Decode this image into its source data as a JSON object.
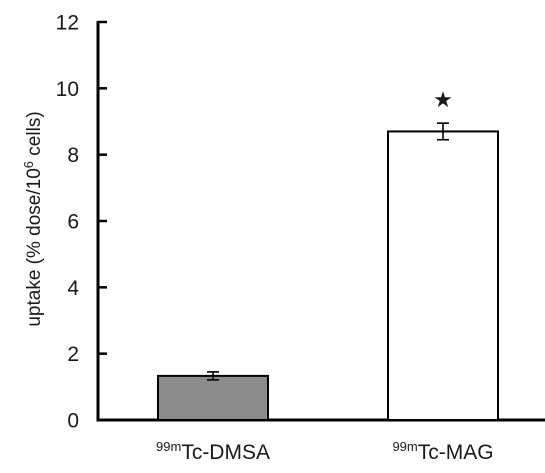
{
  "chart_data": {
    "type": "bar",
    "categories": [
      {
        "sup": "99m",
        "base": "Tc-DMSA"
      },
      {
        "sup": "99m",
        "base": "Tc-MAG"
      }
    ],
    "values": [
      1.33,
      8.7
    ],
    "errors": [
      0.12,
      0.25
    ],
    "bar_colors": [
      "#8c8c8c",
      "#ffffff"
    ],
    "bar_stroke": "#000000",
    "ylim": [
      0,
      12
    ],
    "yticks": [
      0,
      2,
      4,
      6,
      8,
      10,
      12
    ],
    "ylabel": {
      "prefix": "uptake (% dose/10",
      "sup": "6",
      "suffix": " cells)"
    },
    "annotations": [
      {
        "category_index": 1,
        "symbol": "★",
        "meaning": "significant"
      }
    ],
    "grid": false,
    "legend": "none"
  }
}
